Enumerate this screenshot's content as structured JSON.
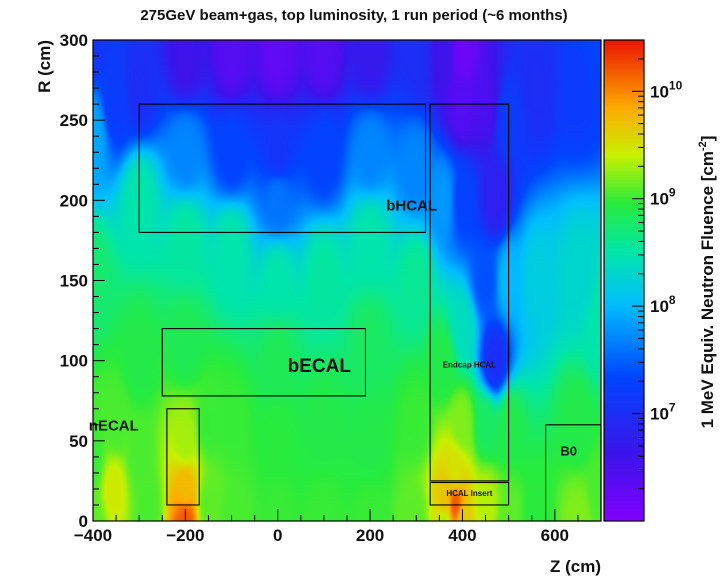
{
  "chart_data": {
    "type": "heatmap",
    "title": "275GeV beam+gas, top luminosity, 1 run period (~6 months)",
    "xlabel": "Z (cm)",
    "ylabel": "R (cm)",
    "zlabel": "1 MeV Equiv. Neutron Fluence [cm",
    "zlabel_sup": "-2",
    "xlim": [
      -400,
      700
    ],
    "ylim": [
      0,
      300
    ],
    "zlim": [
      1000000.0,
      30000000000.0
    ],
    "zscale": "log",
    "grid": false,
    "x_ticks": [
      -400,
      -200,
      0,
      200,
      400,
      600
    ],
    "x_tick_labels": [
      "−400",
      "−200",
      "0",
      "200",
      "400",
      "600"
    ],
    "y_ticks": [
      0,
      50,
      100,
      150,
      200,
      250,
      300
    ],
    "y_tick_labels": [
      "0",
      "50",
      "100",
      "150",
      "200",
      "250",
      "300"
    ],
    "z_ticks": [
      {
        "base": "10",
        "exp": "7",
        "value": 10000000.0
      },
      {
        "base": "10",
        "exp": "8",
        "value": 100000000.0
      },
      {
        "base": "10",
        "exp": "9",
        "value": 1000000000.0
      },
      {
        "base": "10",
        "exp": "10",
        "value": 10000000000.0
      }
    ],
    "regions": [
      {
        "name": "bHCAL",
        "z": [
          -300,
          320
        ],
        "r": [
          180,
          260
        ],
        "label_at": [
          290,
          196
        ],
        "label_size": "large"
      },
      {
        "name": "bECAL",
        "z": [
          -250,
          190
        ],
        "r": [
          78,
          120
        ],
        "label_at": [
          90,
          96
        ],
        "label_size": "xlarge"
      },
      {
        "name": "nECAL",
        "z": [
          -240,
          -170
        ],
        "r": [
          10,
          70
        ],
        "label_at": [
          -355,
          59
        ],
        "label_size": "large"
      },
      {
        "name": "Endcap HCAL",
        "z": [
          330,
          500
        ],
        "r": [
          25,
          260
        ],
        "label_at": [
          415,
          97
        ],
        "label_size": "small"
      },
      {
        "name": "HCAL Insert",
        "z": [
          330,
          500
        ],
        "r": [
          10,
          24
        ],
        "label_at": [
          415,
          17
        ],
        "label_size": "small"
      },
      {
        "name": "B0",
        "z": [
          580,
          700
        ],
        "r": [
          0,
          60
        ],
        "label_at": [
          630,
          43
        ],
        "label_size": "medium"
      }
    ],
    "log10_anchors": [
      [
        -400,
        0,
        9.1
      ],
      [
        -400,
        40,
        9.0
      ],
      [
        -400,
        150,
        8.75
      ],
      [
        -400,
        240,
        7.9
      ],
      [
        -400,
        300,
        7.1
      ],
      [
        -355,
        20,
        9.45
      ],
      [
        -350,
        60,
        9.05
      ],
      [
        -350,
        260,
        7.2
      ],
      [
        -300,
        40,
        9.05
      ],
      [
        -300,
        100,
        8.9
      ],
      [
        -300,
        200,
        8.5
      ],
      [
        -300,
        270,
        7.0
      ],
      [
        -280,
        10,
        9.05
      ],
      [
        -200,
        0,
        10.2
      ],
      [
        -200,
        20,
        9.75
      ],
      [
        -200,
        50,
        9.3
      ],
      [
        -200,
        110,
        8.85
      ],
      [
        -200,
        175,
        8.55
      ],
      [
        -200,
        230,
        7.7
      ],
      [
        -200,
        290,
        6.6
      ],
      [
        -150,
        10,
        9.1
      ],
      [
        -150,
        60,
        9.0
      ],
      [
        -100,
        0,
        9.05
      ],
      [
        -100,
        60,
        9.0
      ],
      [
        -100,
        170,
        8.5
      ],
      [
        -100,
        230,
        7.3
      ],
      [
        -100,
        290,
        6.4
      ],
      [
        0,
        0,
        9.0
      ],
      [
        0,
        50,
        8.95
      ],
      [
        0,
        100,
        8.85
      ],
      [
        0,
        150,
        8.5
      ],
      [
        0,
        200,
        7.6
      ],
      [
        0,
        230,
        7.1
      ],
      [
        0,
        290,
        6.3
      ],
      [
        100,
        0,
        9.0
      ],
      [
        100,
        60,
        8.9
      ],
      [
        100,
        150,
        8.55
      ],
      [
        100,
        230,
        7.3
      ],
      [
        100,
        290,
        6.4
      ],
      [
        200,
        0,
        9.0
      ],
      [
        200,
        50,
        8.9
      ],
      [
        200,
        110,
        8.8
      ],
      [
        200,
        175,
        8.5
      ],
      [
        200,
        230,
        7.7
      ],
      [
        200,
        290,
        6.7
      ],
      [
        300,
        0,
        9.1
      ],
      [
        300,
        60,
        9.0
      ],
      [
        300,
        150,
        8.6
      ],
      [
        300,
        220,
        7.7
      ],
      [
        300,
        290,
        7.0
      ],
      [
        360,
        0,
        9.3
      ],
      [
        360,
        10,
        9.7
      ],
      [
        360,
        100,
        8.9
      ],
      [
        360,
        200,
        7.8
      ],
      [
        360,
        290,
        6.6
      ],
      [
        385,
        10,
        10.2
      ],
      [
        385,
        30,
        9.5
      ],
      [
        400,
        0,
        9.6
      ],
      [
        400,
        60,
        9.2
      ],
      [
        400,
        120,
        8.4
      ],
      [
        400,
        200,
        7.3
      ],
      [
        400,
        260,
        6.4
      ],
      [
        400,
        290,
        6.2
      ],
      [
        450,
        10,
        9.35
      ],
      [
        450,
        60,
        8.8
      ],
      [
        450,
        150,
        7.4
      ],
      [
        450,
        260,
        6.5
      ],
      [
        470,
        100,
        7.0
      ],
      [
        470,
        200,
        6.8
      ],
      [
        500,
        0,
        9.1
      ],
      [
        500,
        60,
        8.9
      ],
      [
        500,
        150,
        8.0
      ],
      [
        500,
        250,
        7.2
      ],
      [
        560,
        0,
        8.95
      ],
      [
        560,
        150,
        8.2
      ],
      [
        560,
        270,
        7.0
      ],
      [
        650,
        0,
        9.2
      ],
      [
        650,
        60,
        8.9
      ],
      [
        650,
        150,
        8.3
      ],
      [
        650,
        270,
        7.2
      ],
      [
        700,
        20,
        9.05
      ],
      [
        700,
        120,
        8.5
      ],
      [
        700,
        300,
        7.3
      ]
    ]
  }
}
